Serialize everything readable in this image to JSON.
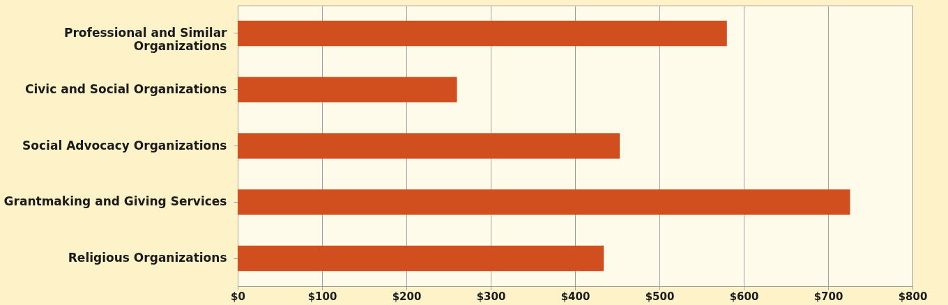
{
  "chart_data": {
    "type": "bar",
    "orientation": "horizontal",
    "categories": [
      "Professional and Similar Organizations",
      "Civic and Social Organizations",
      "Social Advocacy Organizations",
      "Grantmaking and Giving Services",
      "Religious Organizations"
    ],
    "values": [
      580,
      260,
      453,
      726,
      434
    ],
    "color": "#d14f1f",
    "xlim": [
      0,
      800
    ],
    "xticks": [
      {
        "value": 0,
        "label": "$0"
      },
      {
        "value": 100,
        "label": "$100"
      },
      {
        "value": 200,
        "label": "$200"
      },
      {
        "value": 300,
        "label": "$300"
      },
      {
        "value": 400,
        "label": "$400"
      },
      {
        "value": 500,
        "label": "$500"
      },
      {
        "value": 600,
        "label": "$600"
      },
      {
        "value": 700,
        "label": "$700"
      },
      {
        "value": 800,
        "label": "$800"
      }
    ],
    "grid": "x"
  }
}
